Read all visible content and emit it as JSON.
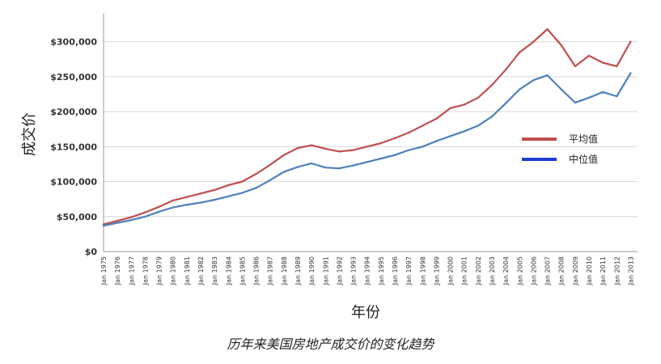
{
  "chart_data": {
    "type": "line",
    "caption": "历年来美国房地产成交价的变化趋势",
    "xlabel": "年份",
    "ylabel": "成交价",
    "ylim": [
      0,
      340000
    ],
    "y_ticks": [
      0,
      50000,
      100000,
      150000,
      200000,
      250000,
      300000
    ],
    "y_tick_labels": [
      "$0",
      "$50,000",
      "$100,000",
      "$150,000",
      "$200,000",
      "$250,000",
      "$300,000"
    ],
    "x_tick_labels": [
      "Jan 1975",
      "Jan 1976",
      "Jan 1977",
      "Jan 1978",
      "Jan 1979",
      "Jan 1980",
      "Jan 1981",
      "Jan 1982",
      "Jan 1983",
      "Jan 1984",
      "Jan 1985",
      "Jan 1986",
      "Jan 1987",
      "Jan 1988",
      "Jan 1989",
      "Jan 1990",
      "Jan 1991",
      "Jan 1992",
      "Jan 1993",
      "Jan 1994",
      "Jan 1995",
      "Jan 1996",
      "Jan 1997",
      "Jan 1998",
      "Jan 1999",
      "Jan 2000",
      "Jan 2001",
      "Jan 2002",
      "Jan 2003",
      "Jan 2004",
      "Jan 2005",
      "Jan 2006",
      "Jan 2007",
      "Jan 2008",
      "Jan 2009",
      "Jan 2010",
      "Jan 2011",
      "Jan 2012",
      "Jan 2013"
    ],
    "grid": true,
    "legend_position": "right-middle",
    "x": [
      1975,
      1976,
      1977,
      1978,
      1979,
      1980,
      1981,
      1982,
      1983,
      1984,
      1985,
      1986,
      1987,
      1988,
      1989,
      1990,
      1991,
      1992,
      1993,
      1994,
      1995,
      1996,
      1997,
      1998,
      1999,
      2000,
      2001,
      2002,
      2003,
      2004,
      2005,
      2006,
      2007,
      2008,
      2009,
      2010,
      2011,
      2012,
      2013
    ],
    "series": [
      {
        "name": "平均值",
        "color": "#c0504d",
        "values": [
          39000,
          44000,
          49000,
          56000,
          64000,
          73000,
          78000,
          83000,
          88000,
          95000,
          100000,
          111000,
          124000,
          138000,
          148000,
          152000,
          147000,
          143000,
          145000,
          150000,
          155000,
          162000,
          170000,
          180000,
          190000,
          205000,
          210000,
          220000,
          238000,
          260000,
          285000,
          300000,
          318000,
          295000,
          265000,
          280000,
          270000,
          265000,
          300000
        ]
      },
      {
        "name": "中位值",
        "color": "#4f81bd",
        "values": [
          37000,
          41000,
          45000,
          50000,
          57000,
          63000,
          67000,
          70000,
          74000,
          79000,
          84000,
          91000,
          102000,
          114000,
          121000,
          126000,
          120000,
          119000,
          123000,
          128000,
          133000,
          138000,
          145000,
          150000,
          158000,
          165000,
          172000,
          180000,
          193000,
          212000,
          232000,
          245000,
          252000,
          232000,
          213000,
          220000,
          228000,
          222000,
          255000
        ]
      }
    ]
  }
}
